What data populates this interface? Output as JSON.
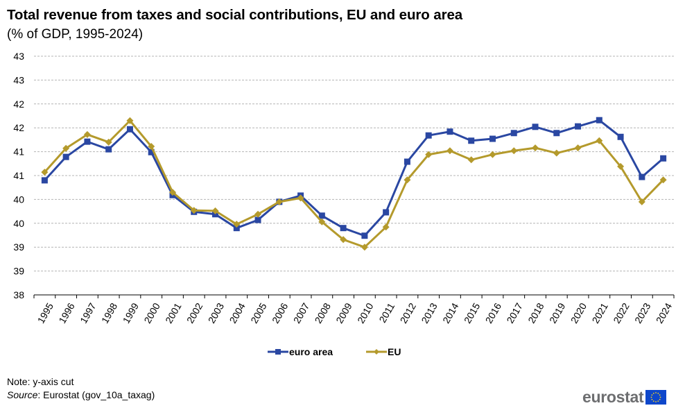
{
  "title": "Total revenue from taxes and social contributions, EU and euro area",
  "subtitle": "(% of GDP, 1995-2024)",
  "note": "Note: y-axis cut",
  "source_label": "Source",
  "source_text": ": Eurostat (gov_10a_taxag)",
  "logo": {
    "text": "eurostat",
    "flag_icon": "eu-flag-icon"
  },
  "colors": {
    "euro_area": "#2a47a2",
    "eu": "#b49a2c",
    "grid": "#b4b4b4",
    "axis": "#000000"
  },
  "chart_data": {
    "type": "line",
    "title": "Total revenue from taxes and social contributions, EU and euro area",
    "subtitle": "(% of GDP, 1995-2024)",
    "xlabel": "",
    "ylabel": "",
    "ylim": [
      38,
      43
    ],
    "yticks": [
      38,
      38.5,
      39,
      39.5,
      40,
      40.5,
      41,
      41.5,
      42,
      42.5,
      43
    ],
    "ytick_labels": [
      "38",
      "39",
      "39",
      "40",
      "40",
      "41",
      "41",
      "42",
      "42",
      "43",
      "43"
    ],
    "grid": true,
    "legend_position": "bottom-center",
    "x": [
      "1995",
      "1996",
      "1997",
      "1998",
      "1999",
      "2000",
      "2001",
      "2002",
      "2003",
      "2004",
      "2005",
      "2006",
      "2007",
      "2008",
      "2009",
      "2010",
      "2011",
      "2012",
      "2013",
      "2014",
      "2015",
      "2016",
      "2017",
      "2018",
      "2019",
      "2020",
      "2021",
      "2022",
      "2023",
      "2024"
    ],
    "series": [
      {
        "name": "euro area",
        "marker": "square",
        "values": [
          40.4,
          40.89,
          41.21,
          41.05,
          41.47,
          40.99,
          40.09,
          39.74,
          39.69,
          39.4,
          39.57,
          39.95,
          40.08,
          39.66,
          39.4,
          39.24,
          39.73,
          40.79,
          41.34,
          41.42,
          41.23,
          41.27,
          41.39,
          41.52,
          41.39,
          41.53,
          41.66,
          41.31,
          40.47,
          40.86
        ]
      },
      {
        "name": "EU",
        "marker": "diamond",
        "values": [
          40.57,
          41.07,
          41.36,
          41.2,
          41.65,
          41.11,
          40.15,
          39.77,
          39.76,
          39.48,
          39.69,
          39.95,
          40.03,
          39.53,
          39.16,
          39.0,
          39.42,
          40.41,
          40.94,
          41.02,
          40.83,
          40.94,
          41.02,
          41.08,
          40.97,
          41.08,
          41.23,
          40.69,
          39.95,
          40.41
        ]
      }
    ]
  }
}
